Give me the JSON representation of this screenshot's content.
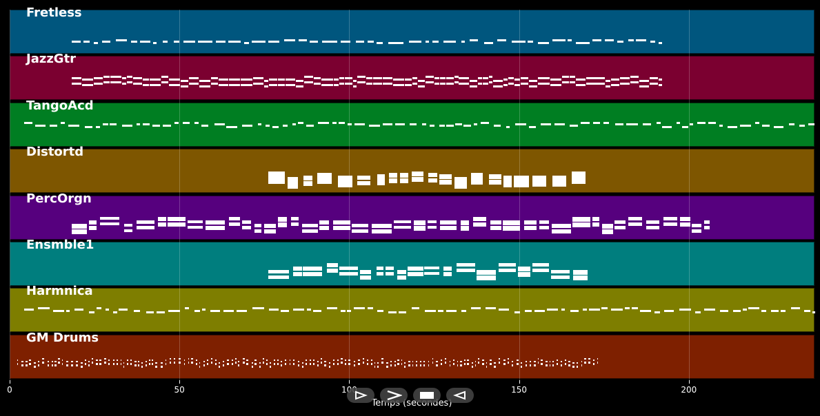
{
  "chart_data": {
    "type": "piano-roll",
    "xlabel": "Temps (secondes)",
    "xlim": [
      0,
      237
    ],
    "x_ticks": [
      0,
      50,
      100,
      150,
      200
    ],
    "grid": true,
    "tracks": [
      {
        "name": "Fretless",
        "color": "#00567e",
        "start": 18,
        "end": 192,
        "rows": 1,
        "style": "light"
      },
      {
        "name": "JazzGtr",
        "color": "#7b0030",
        "start": 18,
        "end": 192,
        "rows": 2,
        "style": "dense"
      },
      {
        "name": "TangoAcd",
        "color": "#007e22",
        "start": 4,
        "end": 237,
        "rows": 1,
        "style": "wavy"
      },
      {
        "name": "Distortd",
        "color": "#7e5600",
        "start": 76,
        "end": 170,
        "rows": 2,
        "style": "block"
      },
      {
        "name": "PercOrgn",
        "color": "#56007e",
        "start": 18,
        "end": 206,
        "rows": 2,
        "style": "bar"
      },
      {
        "name": "Ensmble1",
        "color": "#007e7e",
        "start": 76,
        "end": 170,
        "rows": 2,
        "style": "bar"
      },
      {
        "name": "Harmnica",
        "color": "#7e7e00",
        "start": 4,
        "end": 237,
        "rows": 1,
        "style": "wavy"
      },
      {
        "name": "GM Drums",
        "color": "#7e2000",
        "start": 2,
        "end": 174,
        "rows": 2,
        "style": "drum"
      }
    ]
  },
  "controls": [
    {
      "name": "play",
      "icon": "play-outline-icon"
    },
    {
      "name": "forward",
      "icon": "chevron-right-icon"
    },
    {
      "name": "stop",
      "icon": "stop-icon"
    },
    {
      "name": "back",
      "icon": "triangle-left-icon"
    }
  ]
}
